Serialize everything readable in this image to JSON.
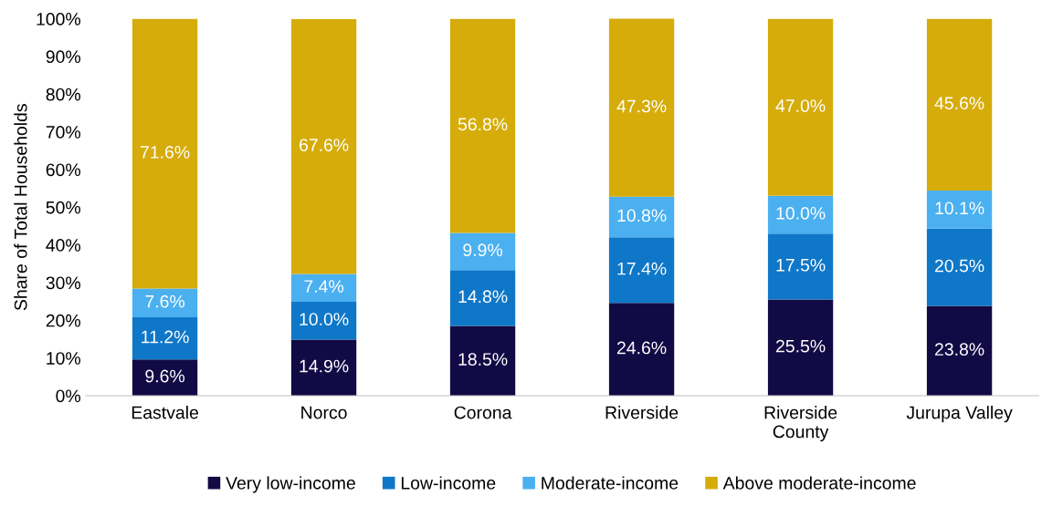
{
  "chart_data": {
    "type": "bar",
    "stacked": true,
    "ylabel": "Share of Total Households",
    "categories": [
      "Eastvale",
      "Norco",
      "Corona",
      "Riverside",
      "Riverside\nCounty",
      "Jurupa Valley"
    ],
    "series": [
      {
        "name": "Very low-income",
        "color": "#120a45",
        "values": [
          9.6,
          14.9,
          18.5,
          24.6,
          25.5,
          23.8
        ],
        "value_labels": [
          "9.6%",
          "14.9%",
          "18.5%",
          "24.6%",
          "25.5%",
          "23.8%"
        ]
      },
      {
        "name": "Low-income",
        "color": "#0f77c8",
        "values": [
          11.2,
          10.0,
          14.8,
          17.4,
          17.5,
          20.5
        ],
        "value_labels": [
          "11.2%",
          "10.0%",
          "14.8%",
          "17.4%",
          "17.5%",
          "20.5%"
        ]
      },
      {
        "name": "Moderate-income",
        "color": "#4bb0f0",
        "values": [
          7.6,
          7.4,
          9.9,
          10.8,
          10.0,
          10.1
        ],
        "value_labels": [
          "7.6%",
          "7.4%",
          "9.9%",
          "10.8%",
          "10.0%",
          "10.1%"
        ]
      },
      {
        "name": "Above moderate-income",
        "color": "#d6ac0b",
        "values": [
          71.6,
          67.6,
          56.8,
          47.3,
          47.0,
          45.6
        ],
        "value_labels": [
          "71.6%",
          "67.6%",
          "56.8%",
          "47.3%",
          "47.0%",
          "45.6%"
        ]
      }
    ],
    "ylim": [
      0,
      100
    ],
    "yticks": [
      {
        "value": 0,
        "label": "0%"
      },
      {
        "value": 10,
        "label": "10%"
      },
      {
        "value": 20,
        "label": "20%"
      },
      {
        "value": 30,
        "label": "30%"
      },
      {
        "value": 40,
        "label": "40%"
      },
      {
        "value": 50,
        "label": "50%"
      },
      {
        "value": 60,
        "label": "60%"
      },
      {
        "value": 70,
        "label": "70%"
      },
      {
        "value": 80,
        "label": "80%"
      },
      {
        "value": 90,
        "label": "90%"
      },
      {
        "value": 100,
        "label": "100%"
      }
    ],
    "grid": false,
    "legend": "bottom"
  }
}
